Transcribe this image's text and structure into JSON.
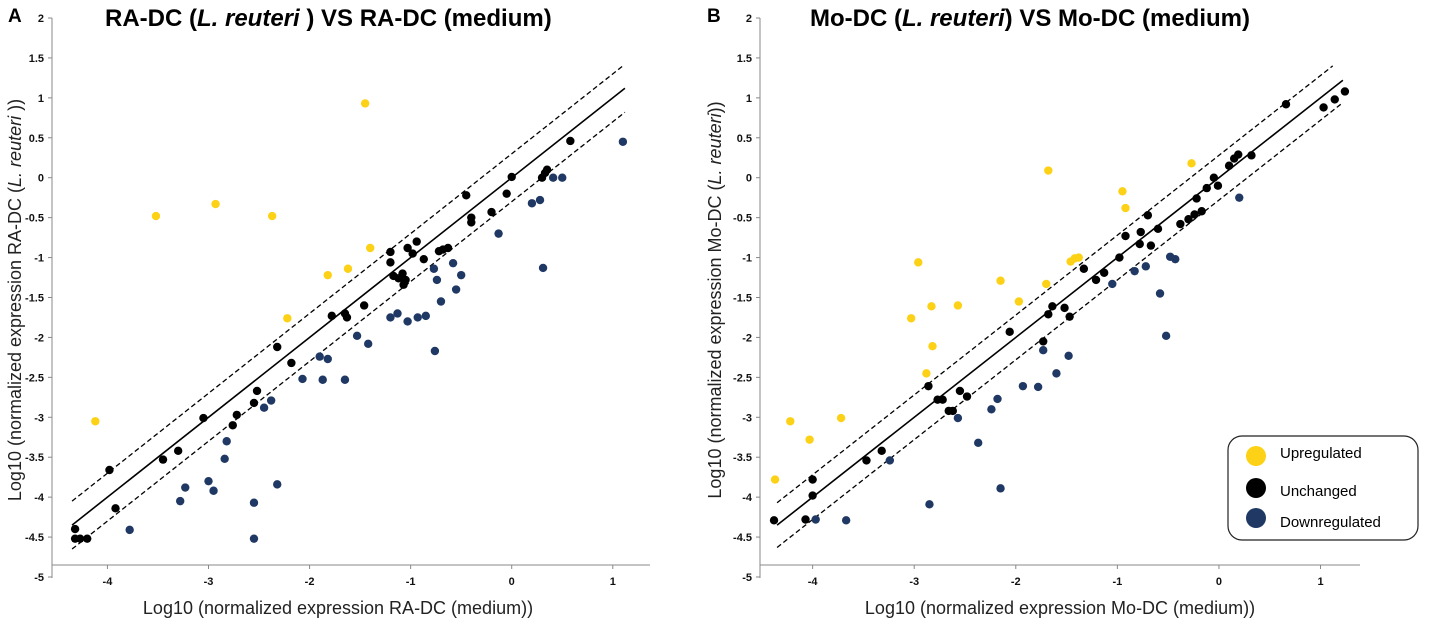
{
  "chart_data": [
    {
      "type": "scatter",
      "panel_letter": "A",
      "title_parts": [
        "RA-DC (",
        "L. reuteri",
        " ) VS RA-DC (medium)"
      ],
      "xlabel": "Log10 (normalized expression RA-DC (medium))",
      "ylabel_parts": [
        "Log10 (normalized expression RA-DC (",
        "L. reuteri",
        " ))"
      ],
      "xlim": [
        -4.4,
        1.2
      ],
      "ylim": [
        -5,
        2
      ],
      "xticks": [
        -4,
        -3,
        -2,
        -1,
        0,
        1
      ],
      "yticks": [
        2,
        1.5,
        1,
        0.5,
        0,
        -0.5,
        -1,
        -1.5,
        -2,
        -2.5,
        -3,
        -3.5,
        -4,
        -4.5,
        -5
      ],
      "grid": false,
      "reference_lines": [
        {
          "name": "identity",
          "style": "solid",
          "offset": 0
        },
        {
          "name": "upper threshold",
          "style": "dashed",
          "offset": 0.3
        },
        {
          "name": "lower threshold",
          "style": "dashed",
          "offset": -0.3
        }
      ],
      "series": [
        {
          "name": "Upregulated",
          "color": "#FCD116",
          "points": [
            [
              -4.12,
              -3.05
            ],
            [
              -3.52,
              -0.48
            ],
            [
              -2.93,
              -0.33
            ],
            [
              -2.37,
              -0.48
            ],
            [
              -2.22,
              -1.76
            ],
            [
              -1.82,
              -1.22
            ],
            [
              -1.62,
              -1.14
            ],
            [
              -1.45,
              0.93
            ],
            [
              -1.4,
              -0.88
            ]
          ]
        },
        {
          "name": "Unchanged",
          "color": "#000000",
          "points": [
            [
              -4.32,
              -4.4
            ],
            [
              -4.32,
              -4.52
            ],
            [
              -4.27,
              -4.52
            ],
            [
              -4.2,
              -4.52
            ],
            [
              -3.98,
              -3.66
            ],
            [
              -3.92,
              -4.14
            ],
            [
              -3.45,
              -3.53
            ],
            [
              -3.3,
              -3.42
            ],
            [
              -3.05,
              -3.01
            ],
            [
              -2.76,
              -3.1
            ],
            [
              -2.72,
              -2.97
            ],
            [
              -2.55,
              -2.82
            ],
            [
              -2.52,
              -2.67
            ],
            [
              -2.32,
              -2.12
            ],
            [
              -2.18,
              -2.32
            ],
            [
              -1.78,
              -1.73
            ],
            [
              -1.65,
              -1.7
            ],
            [
              -1.63,
              -1.75
            ],
            [
              -1.46,
              -1.6
            ],
            [
              -1.2,
              -0.93
            ],
            [
              -1.2,
              -1.06
            ],
            [
              -1.17,
              -1.23
            ],
            [
              -1.12,
              -1.26
            ],
            [
              -1.08,
              -1.2
            ],
            [
              -1.07,
              -1.34
            ],
            [
              -1.05,
              -1.28
            ],
            [
              -1.03,
              -0.88
            ],
            [
              -0.98,
              -0.95
            ],
            [
              -0.94,
              -0.8
            ],
            [
              -0.87,
              -1.02
            ],
            [
              -0.72,
              -0.92
            ],
            [
              -0.68,
              -0.9
            ],
            [
              -0.63,
              -0.88
            ],
            [
              -0.45,
              -0.22
            ],
            [
              -0.4,
              -0.5
            ],
            [
              -0.4,
              -0.56
            ],
            [
              -0.2,
              -0.43
            ],
            [
              -0.05,
              -0.2
            ],
            [
              0.0,
              0.01
            ],
            [
              0.3,
              0.0
            ],
            [
              0.33,
              0.06
            ],
            [
              0.35,
              0.1
            ],
            [
              0.58,
              0.46
            ]
          ]
        },
        {
          "name": "Downregulated",
          "color": "#1F3864",
          "points": [
            [
              -3.78,
              -4.41
            ],
            [
              -3.28,
              -4.05
            ],
            [
              -3.23,
              -3.88
            ],
            [
              -3.0,
              -3.8
            ],
            [
              -2.95,
              -3.92
            ],
            [
              -2.84,
              -3.52
            ],
            [
              -2.82,
              -3.3
            ],
            [
              -2.55,
              -4.07
            ],
            [
              -2.55,
              -4.52
            ],
            [
              -2.45,
              -2.88
            ],
            [
              -2.38,
              -2.79
            ],
            [
              -2.32,
              -3.84
            ],
            [
              -2.07,
              -2.52
            ],
            [
              -1.9,
              -2.24
            ],
            [
              -1.87,
              -2.53
            ],
            [
              -1.82,
              -2.27
            ],
            [
              -1.65,
              -2.53
            ],
            [
              -1.53,
              -1.98
            ],
            [
              -1.42,
              -2.08
            ],
            [
              -1.2,
              -1.75
            ],
            [
              -1.13,
              -1.7
            ],
            [
              -1.03,
              -1.8
            ],
            [
              -0.93,
              -1.75
            ],
            [
              -0.85,
              -1.73
            ],
            [
              -0.77,
              -1.14
            ],
            [
              -0.76,
              -2.17
            ],
            [
              -0.74,
              -1.28
            ],
            [
              -0.7,
              -1.55
            ],
            [
              -0.58,
              -1.07
            ],
            [
              -0.55,
              -1.4
            ],
            [
              -0.5,
              -1.22
            ],
            [
              -0.13,
              -0.7
            ],
            [
              0.2,
              -0.32
            ],
            [
              0.28,
              -0.28
            ],
            [
              0.31,
              -1.13
            ],
            [
              0.41,
              0.0
            ],
            [
              0.5,
              0.0
            ],
            [
              1.1,
              0.45
            ]
          ]
        }
      ]
    },
    {
      "type": "scatter",
      "panel_letter": "B",
      "title_parts": [
        "Mo-DC (",
        "L. reuteri",
        ") VS Mo-DC (medium)"
      ],
      "xlabel": "Log10 (normalized expression Mo-DC (medium))",
      "ylabel_parts": [
        "Log10 (normalized expression Mo-DC (",
        "L. reuteri",
        "))"
      ],
      "xlim": [
        -4.4,
        1.3
      ],
      "ylim": [
        -5,
        2
      ],
      "xticks": [
        -4,
        -3,
        -2,
        -1,
        0,
        1
      ],
      "yticks": [
        2,
        1.5,
        1,
        0.5,
        0,
        -0.5,
        -1,
        -1.5,
        -2,
        -2.5,
        -3,
        -3.5,
        -4,
        -4.5,
        -5
      ],
      "grid": false,
      "legend_position": "bottom-right",
      "reference_lines": [
        {
          "name": "identity",
          "style": "solid",
          "offset": 0
        },
        {
          "name": "upper threshold",
          "style": "dashed",
          "offset": 0.28
        },
        {
          "name": "lower threshold",
          "style": "dashed",
          "offset": -0.28
        }
      ],
      "series": [
        {
          "name": "Upregulated",
          "color": "#FCD116",
          "points": [
            [
              -4.37,
              -3.78
            ],
            [
              -4.22,
              -3.05
            ],
            [
              -4.03,
              -3.28
            ],
            [
              -3.72,
              -3.01
            ],
            [
              -3.03,
              -1.76
            ],
            [
              -2.96,
              -1.06
            ],
            [
              -2.88,
              -2.45
            ],
            [
              -2.83,
              -1.61
            ],
            [
              -2.82,
              -2.11
            ],
            [
              -2.57,
              -1.6
            ],
            [
              -2.15,
              -1.29
            ],
            [
              -1.97,
              -1.55
            ],
            [
              -1.7,
              -1.33
            ],
            [
              -1.68,
              0.09
            ],
            [
              -1.46,
              -1.05
            ],
            [
              -1.42,
              -1.01
            ],
            [
              -1.38,
              -1.0
            ],
            [
              -0.95,
              -0.17
            ],
            [
              -0.92,
              -0.38
            ],
            [
              -0.27,
              0.18
            ]
          ]
        },
        {
          "name": "Unchanged",
          "color": "#000000",
          "points": [
            [
              -4.38,
              -4.29
            ],
            [
              -4.07,
              -4.28
            ],
            [
              -4.0,
              -3.78
            ],
            [
              -4.0,
              -3.98
            ],
            [
              -3.47,
              -3.54
            ],
            [
              -3.32,
              -3.42
            ],
            [
              -2.86,
              -2.61
            ],
            [
              -2.77,
              -2.78
            ],
            [
              -2.72,
              -2.78
            ],
            [
              -2.66,
              -2.92
            ],
            [
              -2.62,
              -2.92
            ],
            [
              -2.55,
              -2.67
            ],
            [
              -2.48,
              -2.74
            ],
            [
              -2.06,
              -1.93
            ],
            [
              -1.73,
              -2.05
            ],
            [
              -1.68,
              -1.71
            ],
            [
              -1.64,
              -1.61
            ],
            [
              -1.52,
              -1.63
            ],
            [
              -1.47,
              -1.74
            ],
            [
              -1.33,
              -1.14
            ],
            [
              -1.21,
              -1.28
            ],
            [
              -1.13,
              -1.19
            ],
            [
              -0.98,
              -1.0
            ],
            [
              -0.92,
              -0.73
            ],
            [
              -0.77,
              -0.68
            ],
            [
              -0.78,
              -0.83
            ],
            [
              -0.7,
              -0.47
            ],
            [
              -0.67,
              -0.85
            ],
            [
              -0.6,
              -0.64
            ],
            [
              -0.38,
              -0.58
            ],
            [
              -0.3,
              -0.52
            ],
            [
              -0.24,
              -0.46
            ],
            [
              -0.22,
              -0.26
            ],
            [
              -0.17,
              -0.42
            ],
            [
              -0.12,
              -0.13
            ],
            [
              -0.05,
              0.0
            ],
            [
              -0.01,
              -0.1
            ],
            [
              0.1,
              0.15
            ],
            [
              0.15,
              0.24
            ],
            [
              0.19,
              0.29
            ],
            [
              0.32,
              0.28
            ],
            [
              0.66,
              0.92
            ],
            [
              1.03,
              0.88
            ],
            [
              1.14,
              0.98
            ],
            [
              1.24,
              1.08
            ]
          ]
        },
        {
          "name": "Downregulated",
          "color": "#1F3864",
          "points": [
            [
              -3.97,
              -4.28
            ],
            [
              -3.67,
              -4.29
            ],
            [
              -3.24,
              -3.54
            ],
            [
              -2.85,
              -4.09
            ],
            [
              -2.57,
              -3.01
            ],
            [
              -2.37,
              -3.32
            ],
            [
              -2.24,
              -2.9
            ],
            [
              -2.18,
              -2.77
            ],
            [
              -2.15,
              -3.89
            ],
            [
              -1.93,
              -2.61
            ],
            [
              -1.78,
              -2.62
            ],
            [
              -1.73,
              -2.16
            ],
            [
              -1.6,
              -2.45
            ],
            [
              -1.48,
              -2.23
            ],
            [
              -1.05,
              -1.33
            ],
            [
              -0.83,
              -1.17
            ],
            [
              -0.72,
              -1.11
            ],
            [
              -0.58,
              -1.45
            ],
            [
              -0.52,
              -1.98
            ],
            [
              -0.48,
              -0.99
            ],
            [
              -0.43,
              -1.02
            ],
            [
              0.2,
              -0.25
            ]
          ]
        }
      ]
    }
  ]
}
